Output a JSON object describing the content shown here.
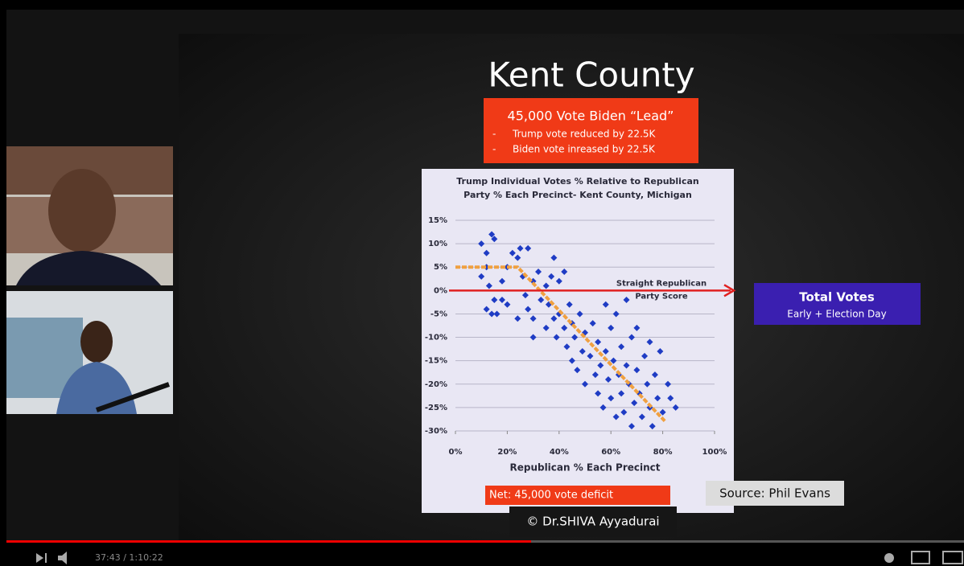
{
  "slide": {
    "title": "Kent County",
    "callout": {
      "heading": "45,000 Vote Biden “Lead”",
      "bullets": [
        "Trump vote reduced by 22.5K",
        "Biden vote inreased by 22.5K"
      ]
    },
    "side_box": {
      "title": "Total Votes",
      "subtitle": "Early + Election Day"
    },
    "net": "Net:  45,000 vote deficit",
    "source": "Source: Phil Evans",
    "credit": "© Dr.SHIVA Ayyadurai"
  },
  "player": {
    "time": "37:43 / 1:10:22"
  },
  "chart_data": {
    "type": "scatter",
    "title": [
      "Trump Individual Votes % Relative to Republican",
      "Party % Each Precinct- Kent County, Michigan"
    ],
    "xlabel": "Republican % Each Precinct",
    "color": "#1f3cc4",
    "x": [
      10,
      12,
      14,
      15,
      12,
      10,
      13,
      15,
      12,
      14,
      16,
      18,
      20,
      18,
      20,
      22,
      24,
      25,
      26,
      27,
      28,
      30,
      30,
      32,
      33,
      35,
      36,
      35,
      37,
      38,
      39,
      40,
      40,
      42,
      43,
      44,
      45,
      45,
      46,
      47,
      48,
      49,
      50,
      50,
      52,
      53,
      54,
      55,
      55,
      56,
      57,
      58,
      59,
      60,
      60,
      61,
      62,
      63,
      64,
      64,
      65,
      66,
      67,
      68,
      68,
      69,
      70,
      70,
      71,
      72,
      73,
      74,
      75,
      75,
      76,
      77,
      78,
      79,
      80,
      82,
      83,
      85,
      42,
      38,
      28,
      30,
      24,
      58,
      62,
      66
    ],
    "values": [
      10,
      8,
      12,
      11,
      5,
      3,
      1,
      -2,
      -4,
      -5,
      -5,
      -2,
      -3,
      2,
      5,
      8,
      7,
      9,
      3,
      -1,
      -4,
      2,
      -6,
      4,
      -2,
      1,
      -3,
      -8,
      3,
      -6,
      -10,
      -5,
      2,
      -8,
      -12,
      -3,
      -7,
      -15,
      -10,
      -17,
      -5,
      -13,
      -9,
      -20,
      -14,
      -7,
      -18,
      -11,
      -22,
      -16,
      -25,
      -13,
      -19,
      -8,
      -23,
      -15,
      -27,
      -18,
      -12,
      -22,
      -26,
      -16,
      -20,
      -29,
      -10,
      -24,
      -17,
      -8,
      -22,
      -27,
      -14,
      -20,
      -25,
      -11,
      -29,
      -18,
      -23,
      -13,
      -26,
      -20,
      -23,
      -25,
      4,
      7,
      9,
      -10,
      -6,
      -3,
      -5,
      -2
    ],
    "xlim": [
      0,
      100
    ],
    "ylim": [
      -30,
      15
    ],
    "xticks": [
      {
        "value": 0,
        "label": "0%"
      },
      {
        "value": 20,
        "label": "20%"
      },
      {
        "value": 40,
        "label": "40%"
      },
      {
        "value": 60,
        "label": "60%"
      },
      {
        "value": 80,
        "label": "80%"
      },
      {
        "value": 100,
        "label": "100%"
      }
    ],
    "yticks": [
      {
        "value": -30,
        "label": "-30%"
      },
      {
        "value": -25,
        "label": "-25%"
      },
      {
        "value": -20,
        "label": "-20%"
      },
      {
        "value": -15,
        "label": "-15%"
      },
      {
        "value": -10,
        "label": "-10%"
      },
      {
        "value": -5,
        "label": "-5%"
      },
      {
        "value": 0,
        "label": "0%"
      },
      {
        "value": 5,
        "label": "5%"
      },
      {
        "value": 10,
        "label": "10%"
      },
      {
        "value": 15,
        "label": "15%"
      }
    ],
    "grid": true,
    "reference_line": {
      "value": 0,
      "color": "#e02020",
      "label": [
        "Straight Republican",
        "Party Score"
      ]
    },
    "trend_line": {
      "x": [
        0,
        24,
        81
      ],
      "values": [
        5,
        5,
        -28
      ],
      "color": "#f0a040"
    }
  }
}
